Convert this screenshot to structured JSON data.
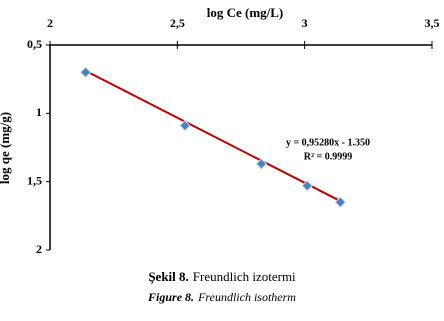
{
  "chart_data": {
    "type": "scatter",
    "x_label": "log Ce (mg/L)",
    "y_label": "log qe (mg/g)",
    "x_axis_position": "top",
    "y_inverted": true,
    "xlim": [
      2,
      3.5
    ],
    "xticks": [
      2,
      {
        "value": 2.5,
        "label": "2,5"
      },
      3,
      {
        "value": 3.5,
        "label": "3,5"
      }
    ],
    "ylim": [
      0.5,
      2
    ],
    "yticks": [
      {
        "value": 0.5,
        "label": "0,5"
      },
      1,
      {
        "value": 1.5,
        "label": "1,5"
      },
      2
    ],
    "series": [
      {
        "color": "#4f81bd",
        "x": [
          2.14,
          2.53,
          2.83,
          3.01,
          3.14
        ],
        "values": [
          0.7,
          1.09,
          1.37,
          1.53,
          1.65
        ]
      }
    ],
    "trendline": {
      "color": "#c00000",
      "x": [
        2.14,
        3.14
      ],
      "values": [
        0.689,
        1.642
      ]
    },
    "annotations": [
      "y = 0,95280x - 1.350",
      "R² = 0.9999"
    ],
    "caption_tr": {
      "label": "Şekil 8.",
      "text": "Freundlich izotermi"
    },
    "caption_en": {
      "label": "Figure 8.",
      "text": "Freundlich isotherm"
    }
  }
}
